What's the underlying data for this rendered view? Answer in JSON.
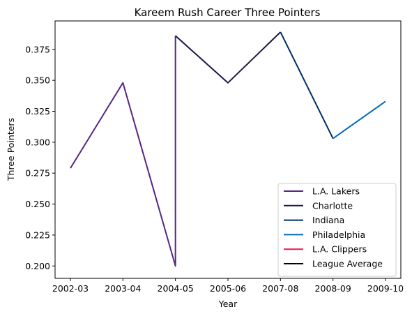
{
  "chart_data": {
    "type": "line",
    "title": "Kareem Rush Career Three Pointers",
    "xlabel": "Year",
    "ylabel": "Three Pointers",
    "categories": [
      "2002-03",
      "2003-04",
      "2004-05",
      "2005-06",
      "2007-08",
      "2008-09",
      "2009-10"
    ],
    "ylim": [
      0.19,
      0.398
    ],
    "yticks": [
      "0.200",
      "0.225",
      "0.250",
      "0.275",
      "0.300",
      "0.325",
      "0.350",
      "0.375"
    ],
    "legend_position": "lower-right",
    "series": [
      {
        "name": "L.A. Lakers",
        "color": "#552583",
        "points": [
          [
            "2002-03",
            0.279
          ],
          [
            "2003-04",
            0.348
          ],
          [
            "2004-05",
            0.2
          ],
          [
            "2004-05",
            0.386
          ]
        ]
      },
      {
        "name": "Charlotte",
        "color": "#201747",
        "points": [
          [
            "2004-05",
            0.386
          ],
          [
            "2005-06",
            0.348
          ],
          [
            "2007-08",
            0.389
          ]
        ]
      },
      {
        "name": "Indiana",
        "color": "#002D62",
        "points": [
          [
            "2007-08",
            0.389
          ],
          [
            "2008-09",
            0.303
          ]
        ]
      },
      {
        "name": "Philadelphia",
        "color": "#006BB6",
        "points": [
          [
            "2008-09",
            0.303
          ],
          [
            "2009-10",
            0.333
          ]
        ]
      },
      {
        "name": "L.A. Clippers",
        "color": "#ED174C",
        "points": []
      },
      {
        "name": "League Average",
        "color": "#000000",
        "points": []
      }
    ]
  }
}
